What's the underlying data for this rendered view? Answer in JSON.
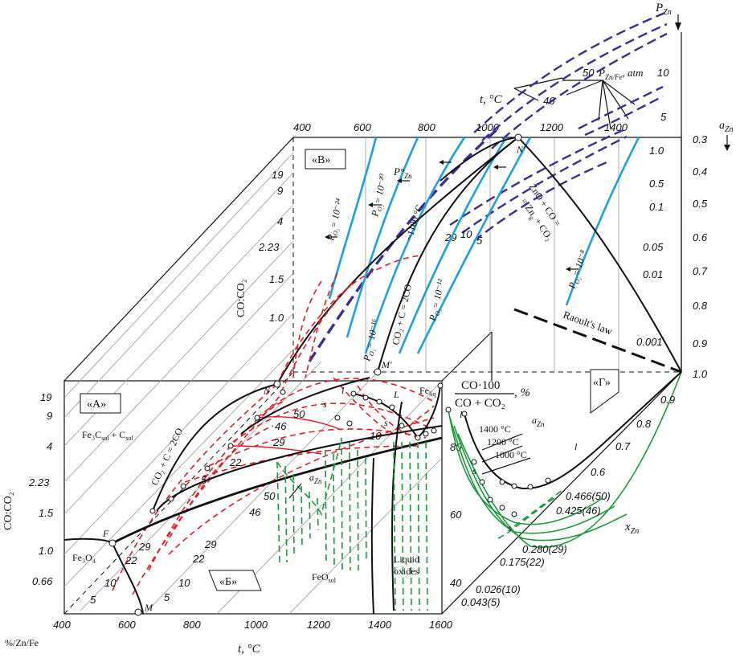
{
  "regions": {
    "A": "«А»",
    "B": "«Б»",
    "V": "«В»",
    "G": "«Г»"
  },
  "front_face": {
    "x_ticks": [
      "400",
      "600",
      "800",
      "1000",
      "1200",
      "1400",
      "1600"
    ],
    "y_ticks": [
      "19",
      "9",
      "4",
      "2.23",
      "1.5",
      "1.0",
      "0.66"
    ],
    "ylabel": "CO:CO₂",
    "xlabel_left": "%/Zn/Fe",
    "xlabel": "t, °C",
    "right_ticks": [
      "80",
      "60",
      "40"
    ],
    "phase_fe3c": "Fe₃C",
    "phase_fe3c_sub": "sol",
    "phase_c": " + C",
    "phase_c_sub": "sol",
    "phase_fe3o4": "Fe₃O₄",
    "phase_feo": "FeO",
    "phase_feo_sub": "sol",
    "phase_liquid": "Liquid",
    "phase_oxides": "oxides",
    "phase_fe": "Fe",
    "phase_fe_sub": "liq",
    "reaction": "CO₂ + C = 2CO",
    "point_F": "F",
    "point_M": "M",
    "point_N": "N",
    "point_L": "L",
    "point_s": "s",
    "point_l": "l",
    "a_zn": "a",
    "a_zn_sub": "Zn",
    "diag_labels": [
      "29",
      "22",
      "10",
      "5",
      "46",
      "50",
      "22",
      "29",
      "10",
      "5",
      "50",
      "46",
      "29",
      "22",
      "5",
      "10"
    ]
  },
  "top_face": {
    "t_ticks": [
      "400",
      "600",
      "800",
      "1000",
      "1200",
      "1400"
    ],
    "y_ticks": [
      "19",
      "9",
      "4",
      "2.23",
      "1.5",
      "1.0"
    ],
    "ylabel": "CO:CO₂",
    "po2_labels": [
      "P",
      "P",
      "P",
      "P",
      "P",
      "P"
    ],
    "po2_exp": [
      "= 10⁻²⁴",
      "= 10⁻²⁰",
      "= 10⁻¹⁶",
      "= 10⁻¹²",
      "= 10⁻⁸"
    ],
    "pzn": "P°",
    "pzn_sub": "Zn",
    "temp_1100": "~1100 °C",
    "reaction_zno1": "ZnO + CO =",
    "reaction_zno2": "= Zn",
    "reaction_zno2b": " + CO₂",
    "reaction_c": "CO₂ + C = 2CO",
    "point_M2": "M'",
    "point_N2": "N'",
    "navy_small": [
      "29",
      "10",
      "5"
    ],
    "raoult": "Raoult's law"
  },
  "right_axis": {
    "azn_ticks": [
      "0.3",
      "0.4",
      "0.5",
      "0.6",
      "0.7",
      "0.8",
      "0.9",
      "1.0"
    ],
    "azn_label": "a",
    "azn_sub": "Zn",
    "pzn_label": "P",
    "pzn_sub": "Zn",
    "pzn_ticks": [
      "10",
      "5"
    ],
    "pznfe_label": "P",
    "pznfe_sub": "Zn/Fe",
    "pznfe_unit": ", atm",
    "t_label": "t, °C",
    "t_nums": [
      "50",
      "46"
    ],
    "inner_ticks": [
      "1.0",
      "0.5",
      "0.1",
      "0.05",
      "0.01",
      "0.001"
    ]
  },
  "right_face": {
    "title_num": "CO·100",
    "title_den": "CO + CO₂",
    "title_unit": ", %",
    "x_ticks": [
      "0.9",
      "0.8",
      "0.7",
      "0.6",
      "0.466(50)",
      "0.425(46)",
      "0.280(29)",
      "0.175(22)",
      "0.026(10)",
      "0.043(5)"
    ],
    "xlabel": "x",
    "xlabel_sub": "Zn",
    "temps": [
      "1400 °C",
      "1200 °C",
      "1000 °C"
    ],
    "a_zn": "a",
    "a_zn_sub": "Zn",
    "point_l": "l",
    "point_s": "s"
  },
  "chart_data": {
    "type": "diagram",
    "title": "",
    "front_x_axis": {
      "label": "t, °C",
      "range": [
        400,
        1600
      ]
    },
    "front_y_axis": {
      "label": "CO:CO₂",
      "ticks": [
        19,
        9,
        4,
        2.23,
        1.5,
        1.0,
        0.66
      ]
    },
    "top_t_axis": {
      "label": "t, °C",
      "range": [
        400,
        1400
      ]
    },
    "a_zn_axis": {
      "label": "a_Zn",
      "range": [
        0.3,
        1.0
      ]
    },
    "x_zn_axis": {
      "label": "x_Zn",
      "ticks": [
        "0.043(5)",
        "0.026(10)",
        "0.175(22)",
        "0.280(29)",
        "0.425(46)",
        "0.466(50)",
        "0.6",
        "0.7",
        "0.8",
        "0.9"
      ]
    },
    "p_zn_axis": {
      "label": "P_Zn",
      "ticks": [
        5,
        10
      ]
    },
    "po2_isobars": [
      "10^-24",
      "10^-20",
      "10^-16",
      "10^-12",
      "10^-8"
    ],
    "zn_fe_percent_curves": [
      5,
      10,
      22,
      29,
      46,
      50
    ]
  }
}
